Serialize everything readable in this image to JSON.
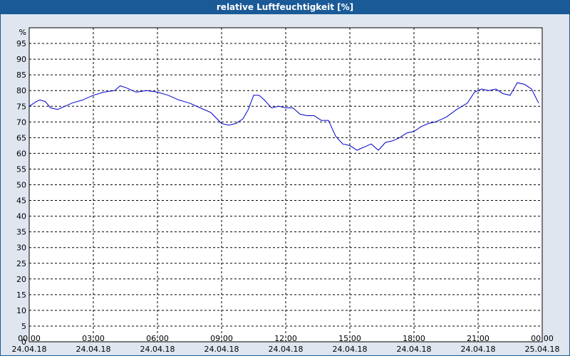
{
  "window": {
    "title": "relative Luftfeuchtigkeit [%]"
  },
  "chart_data": {
    "type": "line",
    "title": "relative Luftfeuchtigkeit [%]",
    "ylabel": "%",
    "ylim": [
      0,
      100
    ],
    "xlim_hours": [
      0,
      24
    ],
    "grid": true,
    "yticks": [
      0,
      5,
      10,
      15,
      20,
      25,
      30,
      35,
      40,
      45,
      50,
      55,
      60,
      65,
      70,
      75,
      80,
      85,
      90,
      95
    ],
    "xticks": [
      {
        "time": "00:00",
        "date": "24.04.18"
      },
      {
        "time": "03:00",
        "date": "24.04.18"
      },
      {
        "time": "06:00",
        "date": "24.04.18"
      },
      {
        "time": "09:00",
        "date": "24.04.18"
      },
      {
        "time": "12:00",
        "date": "24.04.18"
      },
      {
        "time": "15:00",
        "date": "24.04.18"
      },
      {
        "time": "18:00",
        "date": "24.04.18"
      },
      {
        "time": "21:00",
        "date": "24.04.18"
      },
      {
        "time": "00:00",
        "date": "25.04.18"
      }
    ],
    "series": [
      {
        "color": "#0000cc",
        "x": [
          "00:00",
          "00:20",
          "00:30",
          "00:45",
          "01:00",
          "01:20",
          "01:40",
          "02:00",
          "02:30",
          "03:00",
          "03:30",
          "04:00",
          "04:15",
          "04:30",
          "05:00",
          "05:30",
          "06:00",
          "06:30",
          "07:00",
          "07:30",
          "08:00",
          "08:30",
          "09:00",
          "09:20",
          "09:40",
          "10:00",
          "10:15",
          "10:30",
          "10:45",
          "11:00",
          "11:20",
          "11:40",
          "12:00",
          "12:20",
          "12:40",
          "13:00",
          "13:20",
          "13:40",
          "14:00",
          "14:20",
          "14:40",
          "15:00",
          "15:20",
          "15:40",
          "16:00",
          "16:20",
          "16:40",
          "17:00",
          "17:20",
          "17:40",
          "18:00",
          "18:20",
          "18:40",
          "19:00",
          "19:30",
          "20:00",
          "20:30",
          "20:50",
          "21:10",
          "21:30",
          "21:50",
          "22:10",
          "22:30",
          "22:50",
          "23:10",
          "23:30",
          "23:50"
        ],
        "y": [
          75,
          76.5,
          77,
          76.5,
          74.5,
          74,
          75,
          76,
          77,
          78.5,
          79.5,
          80,
          81.5,
          81,
          79.5,
          80,
          79.5,
          78.5,
          77,
          76,
          74.5,
          73,
          69.5,
          69,
          69.5,
          71,
          74,
          78.5,
          78.5,
          77,
          74.5,
          75,
          74.5,
          74.5,
          72.5,
          72,
          72,
          70.5,
          70.5,
          65.5,
          63,
          62.5,
          61,
          62,
          63,
          61,
          63.5,
          64,
          65,
          66.5,
          67,
          68.5,
          69.5,
          70,
          71.5,
          74,
          76,
          79.5,
          80.5,
          80,
          80.5,
          79,
          78.5,
          82.5,
          82,
          80.5,
          76
        ]
      }
    ]
  }
}
